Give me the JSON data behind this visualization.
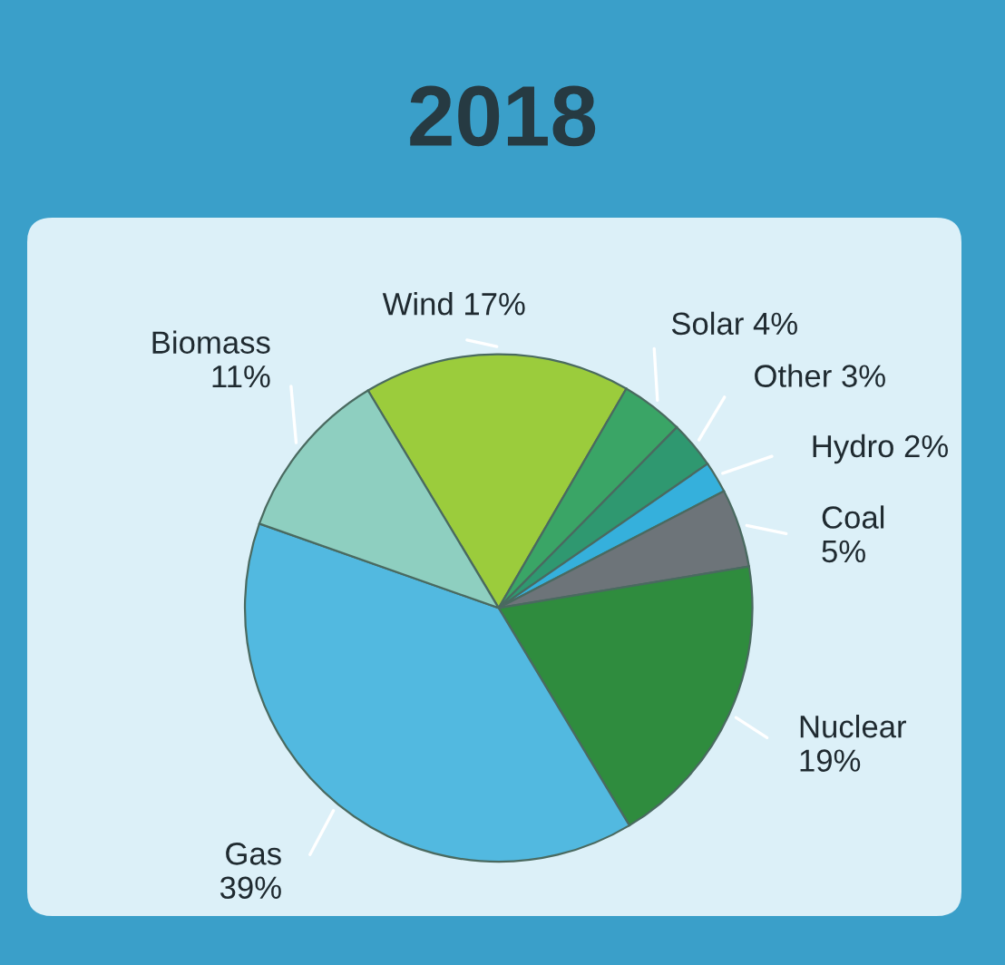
{
  "chart_data": {
    "type": "pie",
    "title": "2018",
    "categories": [
      "Wind",
      "Solar",
      "Other",
      "Hydro",
      "Coal",
      "Nuclear",
      "Gas",
      "Biomass"
    ],
    "values": [
      17,
      4,
      3,
      2,
      5,
      19,
      39,
      11
    ],
    "value_labels": [
      "17%",
      "4%",
      "3%",
      "2%",
      "5%",
      "19%",
      "39%",
      "11%"
    ],
    "colors": [
      "#9bcc3c",
      "#3aa566",
      "#2f9870",
      "#35b0dc",
      "#6d7479",
      "#2f8c3e",
      "#52b9e0",
      "#8ecfc0"
    ]
  }
}
